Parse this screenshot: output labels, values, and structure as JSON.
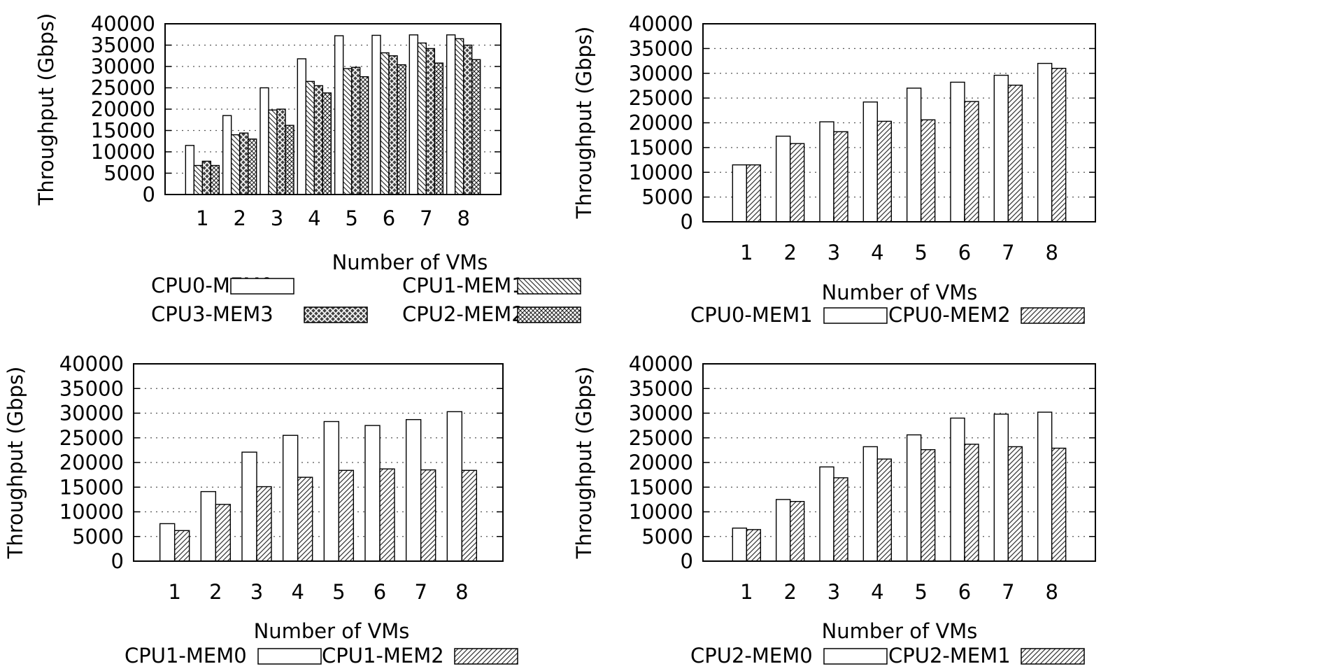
{
  "chart_data": [
    {
      "type": "bar",
      "title": "",
      "xlabel": "Number of VMs",
      "ylabel": "Throughput (Gbps)",
      "categories": [
        "1",
        "2",
        "3",
        "4",
        "5",
        "6",
        "7",
        "8"
      ],
      "ylim": [
        0,
        40000
      ],
      "yticks": [
        "0",
        "5000",
        "10000",
        "15000",
        "20000",
        "25000",
        "30000",
        "35000",
        "40000"
      ],
      "grid": "horizontal-dotted",
      "legend_position": "below",
      "series": [
        {
          "name": "CPU0-MEM0",
          "pattern": "white",
          "values": [
            11500,
            18500,
            25000,
            31800,
            37200,
            37300,
            37400,
            37400
          ]
        },
        {
          "name": "CPU1-MEM1",
          "pattern": "hatch-back",
          "values": [
            6800,
            14000,
            19800,
            26500,
            29500,
            33200,
            35500,
            36500
          ]
        },
        {
          "name": "CPU3-MEM3",
          "pattern": "crosshatch-dark",
          "values": [
            7800,
            14400,
            20000,
            25500,
            29800,
            32500,
            34200,
            35000
          ]
        },
        {
          "name": "CPU2-MEM2",
          "pattern": "crosshatch",
          "values": [
            6800,
            13000,
            16200,
            23800,
            27600,
            30400,
            30800,
            31600
          ]
        }
      ],
      "legend_order": [
        "CPU0-MEM0",
        "CPU3-MEM3",
        "CPU1-MEM1",
        "CPU2-MEM2"
      ]
    },
    {
      "type": "bar",
      "title": "",
      "xlabel": "Number of VMs",
      "ylabel": "Throughput (Gbps)",
      "categories": [
        "1",
        "2",
        "3",
        "4",
        "5",
        "6",
        "7",
        "8"
      ],
      "ylim": [
        0,
        40000
      ],
      "yticks": [
        "0",
        "5000",
        "10000",
        "15000",
        "20000",
        "25000",
        "30000",
        "35000",
        "40000"
      ],
      "grid": "horizontal-dotted",
      "legend_position": "below",
      "series": [
        {
          "name": "CPU0-MEM1",
          "pattern": "white",
          "values": [
            11500,
            17300,
            20200,
            24200,
            27000,
            28200,
            29600,
            32000
          ]
        },
        {
          "name": "CPU0-MEM2",
          "pattern": "hatch-fwd",
          "values": [
            11500,
            15800,
            18200,
            20300,
            20600,
            24300,
            27600,
            31000
          ]
        }
      ],
      "legend_order": [
        "CPU0-MEM1",
        "CPU0-MEM2"
      ]
    },
    {
      "type": "bar",
      "title": "",
      "xlabel": "Number of VMs",
      "ylabel": "Throughput (Gbps)",
      "categories": [
        "1",
        "2",
        "3",
        "4",
        "5",
        "6",
        "7",
        "8"
      ],
      "ylim": [
        0,
        40000
      ],
      "yticks": [
        "0",
        "5000",
        "10000",
        "15000",
        "20000",
        "25000",
        "30000",
        "35000",
        "40000"
      ],
      "grid": "horizontal-dotted",
      "legend_position": "below",
      "series": [
        {
          "name": "CPU1-MEM0",
          "pattern": "white",
          "values": [
            7600,
            14100,
            22100,
            25500,
            28300,
            27500,
            28700,
            30300
          ]
        },
        {
          "name": "CPU1-MEM2",
          "pattern": "hatch-fwd",
          "values": [
            6200,
            11500,
            15100,
            17000,
            18400,
            18700,
            18500,
            18400
          ]
        }
      ],
      "legend_order": [
        "CPU1-MEM0",
        "CPU1-MEM2"
      ]
    },
    {
      "type": "bar",
      "title": "",
      "xlabel": "Number of VMs",
      "ylabel": "Throughput (Gbps)",
      "categories": [
        "1",
        "2",
        "3",
        "4",
        "5",
        "6",
        "7",
        "8"
      ],
      "ylim": [
        0,
        40000
      ],
      "yticks": [
        "0",
        "5000",
        "10000",
        "15000",
        "20000",
        "25000",
        "30000",
        "35000",
        "40000"
      ],
      "grid": "horizontal-dotted",
      "legend_position": "below",
      "series": [
        {
          "name": "CPU2-MEM0",
          "pattern": "white",
          "values": [
            6700,
            12500,
            19100,
            23200,
            25600,
            29000,
            29800,
            30200
          ]
        },
        {
          "name": "CPU2-MEM1",
          "pattern": "hatch-fwd",
          "values": [
            6400,
            12100,
            16900,
            20700,
            22600,
            23700,
            23200,
            22900
          ]
        }
      ],
      "legend_order": [
        "CPU2-MEM0",
        "CPU2-MEM1"
      ]
    }
  ]
}
